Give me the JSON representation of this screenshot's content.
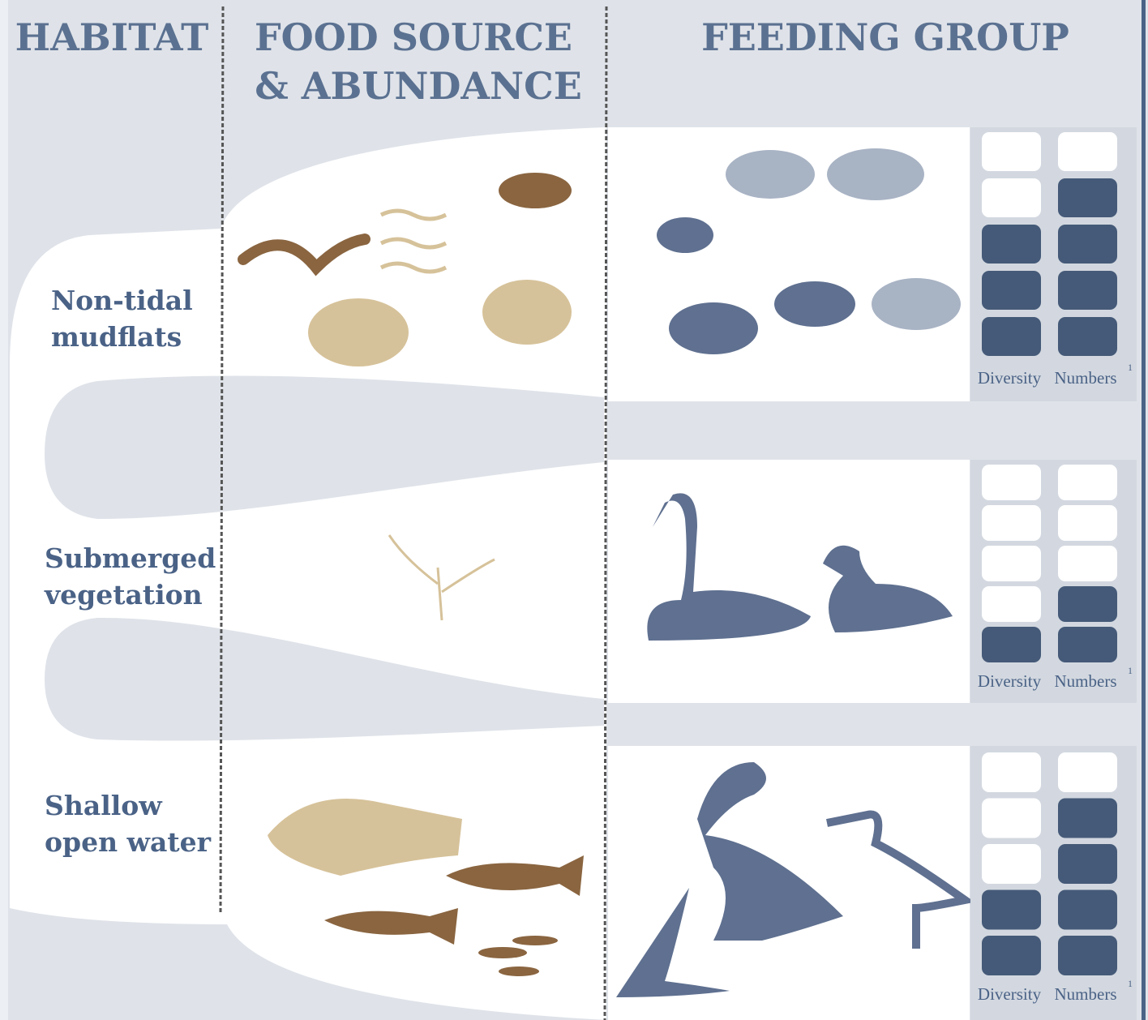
{
  "header": {
    "habitat": "HABITAT",
    "food": [
      "FOOD SOURCE",
      "& ABUNDANCE"
    ],
    "feeding": "FEEDING GROUP"
  },
  "rating_max": 5,
  "rows": [
    {
      "habitat": [
        "Non-tidal",
        "mudflats"
      ],
      "diversity": 3,
      "numbers": 4,
      "diversity_label": "Diversity",
      "numbers_label": "Numbers",
      "note": "1"
    },
    {
      "habitat": [
        "Submerged",
        "vegetation"
      ],
      "diversity": 1,
      "numbers": 2,
      "diversity_label": "Diversity",
      "numbers_label": "Numbers",
      "note": "1"
    },
    {
      "habitat": [
        "Shallow",
        "open water"
      ],
      "diversity": 2,
      "numbers": 4,
      "diversity_label": "Diversity",
      "numbers_label": "Numbers",
      "note": "1"
    }
  ]
}
